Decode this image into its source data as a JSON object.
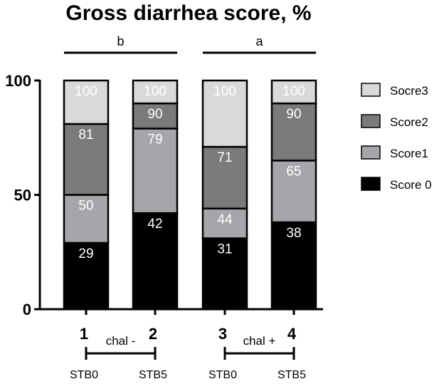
{
  "chart_data": {
    "type": "bar",
    "stacked": true,
    "title": "Gross diarrhea score, %",
    "xlabel": "",
    "ylabel": "",
    "ylim": [
      0,
      100
    ],
    "yticks": [
      0,
      50,
      100
    ],
    "categories": [
      "1",
      "2",
      "3",
      "4"
    ],
    "subcategories": [
      "STB0",
      "STB5",
      "STB0",
      "STB5"
    ],
    "series": [
      {
        "name": "Score 0",
        "color": "#000000",
        "values": [
          29,
          42,
          31,
          38
        ],
        "labels": [
          "29",
          "42",
          "31",
          "38"
        ]
      },
      {
        "name": "Score1",
        "color": "#a6a6aa",
        "values": [
          21,
          37,
          13,
          27
        ],
        "labels": [
          "50",
          "79",
          "44",
          "65"
        ]
      },
      {
        "name": "Score2",
        "color": "#7b7b7b",
        "values": [
          31,
          11,
          27,
          25
        ],
        "labels": [
          "81",
          "90",
          "71",
          "90"
        ]
      },
      {
        "name": "Socre3",
        "color": "#d9d9d9",
        "values": [
          19,
          10,
          29,
          10
        ],
        "labels": [
          "100",
          "100",
          "100",
          "100"
        ]
      }
    ],
    "legend_position": "right",
    "legend_order": [
      "Socre3",
      "Score2",
      "Score1",
      "Score 0"
    ],
    "significance": [
      {
        "label": "b",
        "from": 0,
        "to": 1
      },
      {
        "label": "a",
        "from": 2,
        "to": 3
      }
    ],
    "groups": [
      {
        "label": "chal -",
        "from": 0,
        "to": 1
      },
      {
        "label": "chal +",
        "from": 2,
        "to": 3
      }
    ]
  }
}
